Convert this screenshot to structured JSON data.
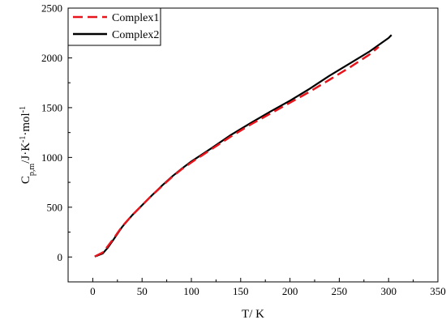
{
  "chart_data": {
    "type": "line",
    "xlabel": "T/ K",
    "ylabel": {
      "parts": [
        {
          "text": "C",
          "style": "normal"
        },
        {
          "text": "p,m",
          "style": "sub"
        },
        {
          "text": "/J·K",
          "style": "normal"
        },
        {
          "text": "-1",
          "style": "sup"
        },
        {
          "text": "·mol",
          "style": "normal"
        },
        {
          "text": "-1",
          "style": "sup"
        }
      ]
    },
    "xlim": [
      -25,
      350
    ],
    "ylim": [
      -250,
      2500
    ],
    "xticks": [
      0,
      50,
      100,
      150,
      200,
      250,
      300,
      350
    ],
    "yticks": [
      0,
      500,
      1000,
      1500,
      2000,
      2500
    ],
    "legend_position": "top-left",
    "series": [
      {
        "name": "Complex1",
        "color": "#e8141c",
        "dash": "dashed",
        "x": [
          2,
          5,
          10,
          15,
          20,
          30,
          40,
          50,
          60,
          70,
          80,
          90,
          100,
          120,
          140,
          160,
          180,
          200,
          220,
          240,
          260,
          280,
          290
        ],
        "y": [
          5,
          20,
          45,
          105,
          170,
          310,
          420,
          520,
          620,
          710,
          800,
          880,
          950,
          1080,
          1210,
          1330,
          1440,
          1550,
          1660,
          1780,
          1900,
          2030,
          2110
        ]
      },
      {
        "name": "Complex2",
        "color": "#000000",
        "dash": "solid",
        "x": [
          2,
          5,
          10,
          15,
          20,
          30,
          40,
          50,
          60,
          70,
          80,
          90,
          100,
          120,
          140,
          160,
          180,
          200,
          220,
          240,
          250,
          260,
          280,
          290,
          300,
          303
        ],
        "y": [
          5,
          15,
          35,
          90,
          160,
          305,
          420,
          520,
          620,
          715,
          805,
          885,
          960,
          1090,
          1225,
          1345,
          1460,
          1570,
          1690,
          1820,
          1880,
          1940,
          2060,
          2130,
          2200,
          2230
        ]
      }
    ]
  }
}
